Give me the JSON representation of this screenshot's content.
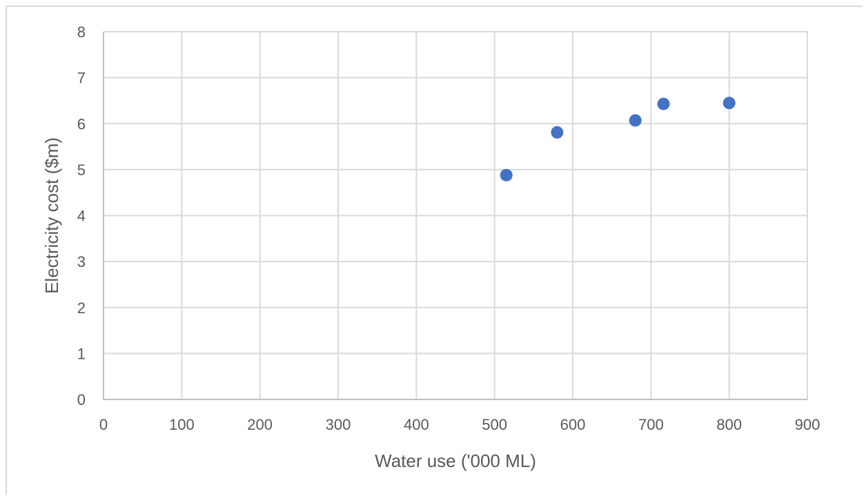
{
  "chart_data": {
    "type": "scatter",
    "title": "",
    "xlabel": "Water use ('000 ML)",
    "ylabel": "Electricity cost ($m)",
    "xlim": [
      0,
      900
    ],
    "ylim": [
      0,
      8
    ],
    "x_ticks": [
      0,
      100,
      200,
      300,
      400,
      500,
      600,
      700,
      800,
      900
    ],
    "y_ticks": [
      0,
      1,
      2,
      3,
      4,
      5,
      6,
      7,
      8
    ],
    "grid": true,
    "legend": "none",
    "series": [
      {
        "color": "#4472c4",
        "points": [
          {
            "x": 515,
            "y": 4.88
          },
          {
            "x": 580,
            "y": 5.81
          },
          {
            "x": 680,
            "y": 6.07
          },
          {
            "x": 716,
            "y": 6.43
          },
          {
            "x": 800,
            "y": 6.45
          }
        ]
      }
    ],
    "grid_color": "#d9d9d9",
    "axis_color": "#bfbfbf",
    "text_color": "#595959"
  }
}
